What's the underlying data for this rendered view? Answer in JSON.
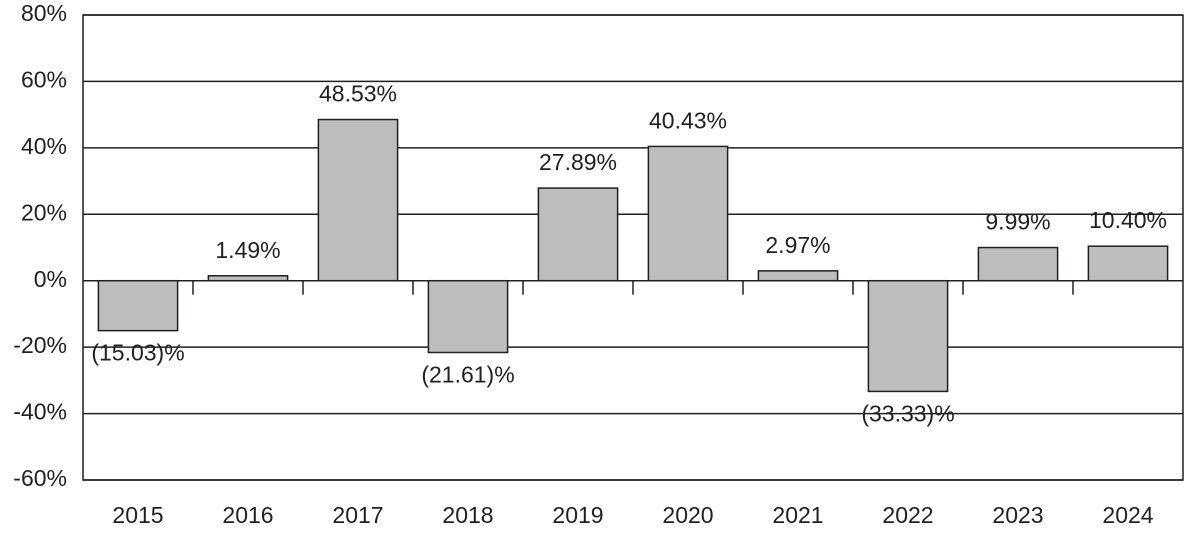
{
  "chart_data": {
    "type": "bar",
    "categories": [
      "2015",
      "2016",
      "2017",
      "2018",
      "2019",
      "2020",
      "2021",
      "2022",
      "2023",
      "2024"
    ],
    "values": [
      -15.03,
      1.49,
      48.53,
      -21.61,
      27.89,
      40.43,
      2.97,
      -33.33,
      9.99,
      10.4
    ],
    "value_labels": [
      "(15.03)%",
      "1.49%",
      "48.53%",
      "(21.61)%",
      "27.89%",
      "40.43%",
      "2.97%",
      "(33.33)%",
      "9.99%",
      "10.40%"
    ],
    "color": "#bdbdbd",
    "ylim": [
      -60,
      80
    ],
    "yticks": [
      {
        "value": -60,
        "label": "-60%"
      },
      {
        "value": -40,
        "label": "-40%"
      },
      {
        "value": -20,
        "label": "-20%"
      },
      {
        "value": 0,
        "label": "0%"
      },
      {
        "value": 20,
        "label": "20%"
      },
      {
        "value": 40,
        "label": "40%"
      },
      {
        "value": 60,
        "label": "60%"
      },
      {
        "value": 80,
        "label": "80%"
      }
    ],
    "grid": true
  }
}
